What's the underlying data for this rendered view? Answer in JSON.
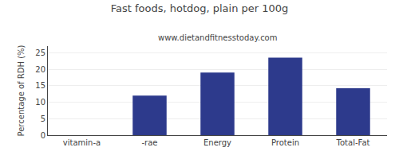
{
  "chart_data": {
    "type": "bar",
    "title": "Fast foods, hotdog, plain per 100g",
    "subtitle": "www.dietandfitnesstoday.com",
    "categories": [
      "vitamin-a",
      "-rae",
      "Energy",
      "Protein",
      "Total-Fat"
    ],
    "values": [
      0,
      12,
      19,
      23.5,
      14.2
    ],
    "color": "#2d3a8c",
    "ylabel": "Percentage of RDH (%)",
    "ylim": [
      0,
      27
    ],
    "yticks": [
      0,
      5,
      10,
      15,
      20,
      25
    ],
    "grid": true
  }
}
